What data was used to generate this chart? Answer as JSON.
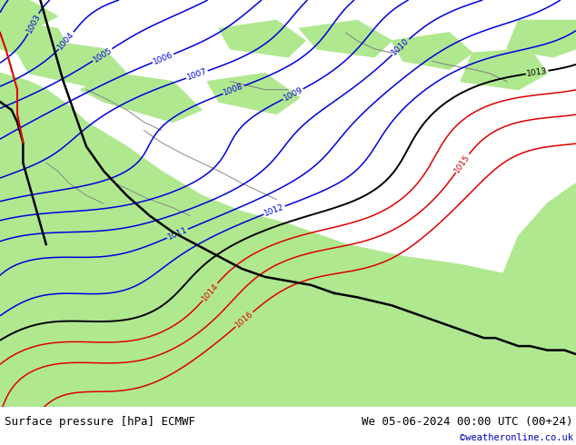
{
  "title_left": "Surface pressure [hPa] ECMWF",
  "title_right": "We 05-06-2024 00:00 UTC (00+24)",
  "title_right2": "©weatheronline.co.uk",
  "land_color_bright": "#b0e890",
  "land_color_mid": "#b8e8a0",
  "sea_color": "#c8c8c8",
  "blue_color": "#0000dd",
  "black_color": "#000000",
  "red_color": "#dd0000",
  "figsize": [
    6.34,
    4.9
  ],
  "dpi": 100
}
